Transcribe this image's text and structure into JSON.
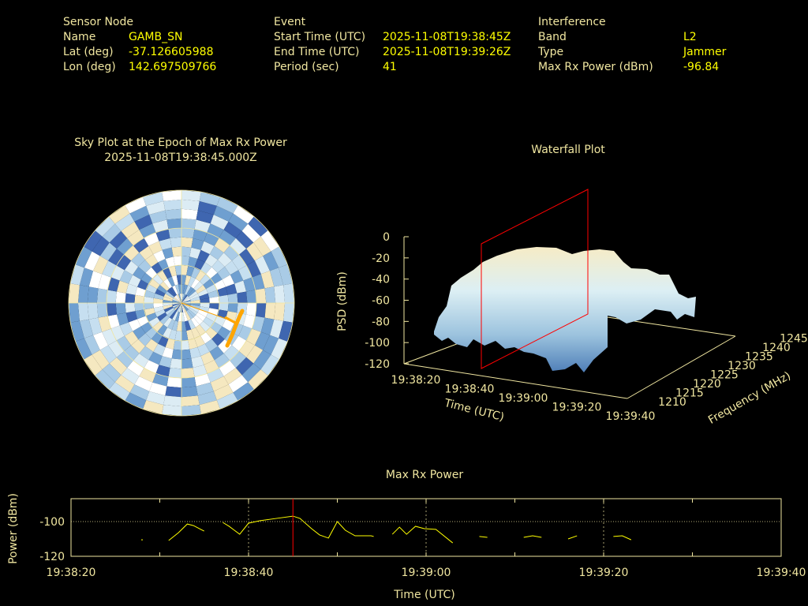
{
  "header": {
    "sensor": {
      "title": "Sensor Node",
      "name_label": "Name",
      "name": "GAMB_SN",
      "lat_label": "Lat (deg)",
      "lat": "-37.126605988",
      "lon_label": "Lon (deg)",
      "lon": "142.697509766"
    },
    "event": {
      "title": "Event",
      "start_label": "Start Time (UTC)",
      "start": "2025-11-08T19:38:45Z",
      "end_label": "End Time (UTC)",
      "end": "2025-11-08T19:39:26Z",
      "period_label": "Period (sec)",
      "period": "41"
    },
    "interference": {
      "title": "Interference",
      "band_label": "Band",
      "band": "L2",
      "type_label": "Type",
      "type": "Jammer",
      "power_label": "Max Rx Power (dBm)",
      "power": "-96.84"
    }
  },
  "colors": {
    "label": "#f0e6a0",
    "value": "#ffff00",
    "marker": "#ff0000",
    "track": "#ffa500"
  },
  "chart_data": [
    {
      "type": "polar-heatmap",
      "title": "Sky Plot at the Epoch of Max Rx Power",
      "subtitle": "2025-11-08T19:38:45.000Z"
    },
    {
      "type": "surface3d",
      "title": "Waterfall Plot",
      "zlabel": "PSD (dBm)",
      "xlabel": "Time (UTC)",
      "ylabel": "Frequency (MHz)",
      "z_ticks": [
        "0",
        "-20",
        "-40",
        "-60",
        "-80",
        "-100",
        "-120"
      ],
      "x_ticks": [
        "19:38:20",
        "19:38:40",
        "19:39:00",
        "19:39:20",
        "19:39:40"
      ],
      "y_ticks": [
        "1210",
        "1215",
        "1220",
        "1225",
        "1230",
        "1235",
        "1240",
        "1245"
      ],
      "zlim": [
        -120,
        0
      ],
      "marker_time": "19:38:45"
    },
    {
      "type": "line",
      "title": "Max Rx Power",
      "xlabel": "Time (UTC)",
      "ylabel": "Power (dBm)",
      "x_ticks": [
        "19:38:20",
        "19:38:40",
        "19:39:00",
        "19:39:20",
        "19:39:40"
      ],
      "y_ticks": [
        "-100",
        "-120"
      ],
      "xlim_seconds_from_19_38_20": [
        0,
        80
      ],
      "ylim": [
        -120,
        -86.8
      ],
      "marker_seconds": 25,
      "segments": [
        [
          [
            8,
            -110.5
          ]
        ],
        [
          [
            11,
            -110.9
          ],
          [
            12.1,
            -106.4
          ],
          [
            13.1,
            -101.4
          ],
          [
            13.8,
            -102.3
          ],
          [
            15,
            -105.5
          ]
        ],
        [
          [
            17.1,
            -100.5
          ],
          [
            17.8,
            -102.7
          ],
          [
            18.4,
            -105
          ],
          [
            19,
            -107.3
          ],
          [
            20,
            -100.9
          ],
          [
            21.3,
            -99.5
          ],
          [
            23.1,
            -98.2
          ],
          [
            25,
            -96.84
          ],
          [
            25.8,
            -98.2
          ],
          [
            27.1,
            -104.1
          ],
          [
            28,
            -107.7
          ],
          [
            29,
            -109.5
          ],
          [
            30,
            -100
          ],
          [
            30.9,
            -105
          ],
          [
            32,
            -108.2
          ],
          [
            33.8,
            -108.2
          ],
          [
            34.1,
            -108.6
          ]
        ],
        [
          [
            36.2,
            -107.3
          ],
          [
            37,
            -103.2
          ],
          [
            37.8,
            -107.3
          ],
          [
            38.8,
            -102.7
          ],
          [
            39.8,
            -104.1
          ],
          [
            41.1,
            -104.5
          ],
          [
            43,
            -112.3
          ]
        ],
        [
          [
            46,
            -108.6
          ],
          [
            46.9,
            -109.1
          ]
        ],
        [
          [
            51,
            -109.1
          ],
          [
            52,
            -108.2
          ],
          [
            53,
            -109.1
          ]
        ],
        [
          [
            56,
            -110
          ],
          [
            57,
            -108.2
          ]
        ],
        [
          [
            61.1,
            -108.6
          ],
          [
            62.1,
            -108.2
          ],
          [
            63.1,
            -110.5
          ]
        ]
      ]
    }
  ]
}
